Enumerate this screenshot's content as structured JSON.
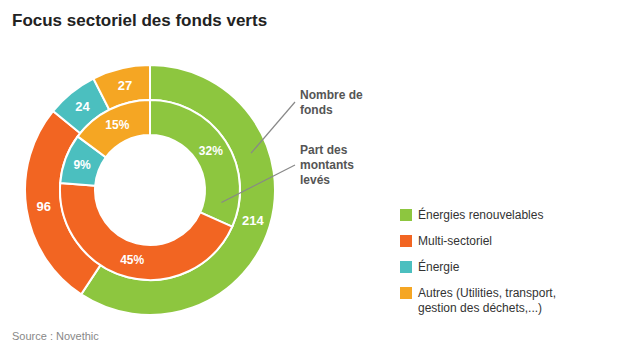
{
  "chart_data": {
    "type": "pie",
    "title": "Focus sectoriel des fonds verts",
    "source": "Source : Novethic",
    "categories": [
      "Énergies renouvelables",
      "Multi-sectoriel",
      "Énergie",
      "Autres (Utilities, transport,\ngestion des déchets,...)"
    ],
    "colors": [
      "#8dc63f",
      "#f26522",
      "#4bbfbf",
      "#f5a623"
    ],
    "series": [
      {
        "name": "Nombre de\nfonds",
        "values": [
          214,
          96,
          24,
          27
        ]
      },
      {
        "name": "Part des\nmontants\nlevés",
        "values": [
          32,
          45,
          9,
          15
        ],
        "value_labels": [
          "32%",
          "45%",
          "9%",
          "15%"
        ]
      }
    ],
    "data_labels": true,
    "legend": "lower right"
  }
}
